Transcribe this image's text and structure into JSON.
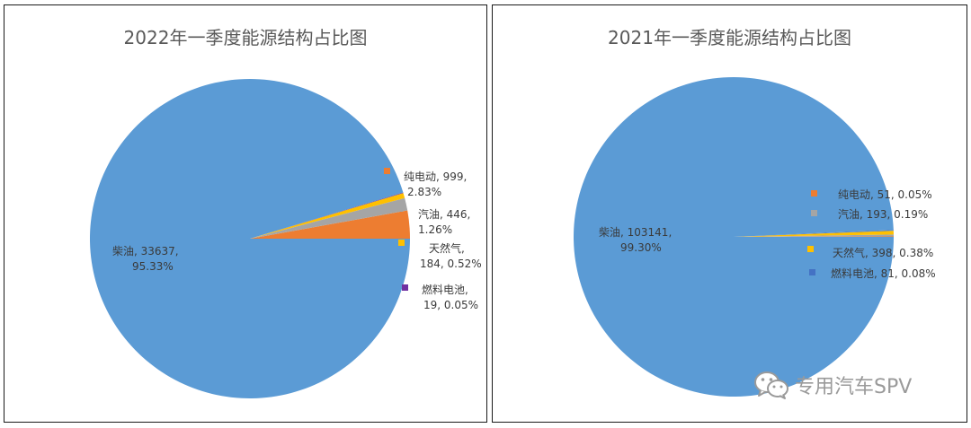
{
  "chart_data": [
    {
      "type": "pie",
      "title": "2022年一季度能源结构占比图",
      "slices": [
        {
          "name": "纯电动",
          "value": 999,
          "pct_text": "2.83%",
          "color": "#ED7D31"
        },
        {
          "name": "汽油",
          "value": 446,
          "pct_text": "1.26%",
          "color": "#A5A5A5"
        },
        {
          "name": "天然气",
          "value": 184,
          "pct_text": "0.52%",
          "color": "#FFC000"
        },
        {
          "name": "燃料电池",
          "value": 19,
          "pct_text": "0.05%",
          "color": "#7030A0"
        },
        {
          "name": "柴油",
          "value": 33637,
          "pct_text": "95.33%",
          "color": "#5B9BD5"
        }
      ],
      "labels": {
        "纯电动": [
          "纯电动, 999,",
          "2.83%"
        ],
        "汽油": [
          "汽油, 446,",
          "1.26%"
        ],
        "天然气": [
          "天然气,",
          "184, 0.52%"
        ],
        "燃料电池": [
          "燃料电池,",
          "19, 0.05%"
        ],
        "柴油": [
          "柴油, 33637,",
          "95.33%"
        ]
      }
    },
    {
      "type": "pie",
      "title": "2021年一季度能源结构占比图",
      "slices": [
        {
          "name": "纯电动",
          "value": 51,
          "pct_text": "0.05%",
          "color": "#ED7D31"
        },
        {
          "name": "汽油",
          "value": 193,
          "pct_text": "0.19%",
          "color": "#A5A5A5"
        },
        {
          "name": "天然气",
          "value": 398,
          "pct_text": "0.38%",
          "color": "#FFC000"
        },
        {
          "name": "燃料电池",
          "value": 81,
          "pct_text": "0.08%",
          "color": "#4472C4"
        },
        {
          "name": "柴油",
          "value": 103141,
          "pct_text": "99.30%",
          "color": "#5B9BD5"
        }
      ],
      "labels": {
        "纯电动": "纯电动, 51, 0.05%",
        "汽油": "汽油, 193, 0.19%",
        "天然气": "天然气, 398, 0.38%",
        "燃料电池": "燃料电池, 81, 0.08%",
        "柴油": [
          "柴油, 103141,",
          "99.30%"
        ]
      }
    }
  ],
  "watermark": {
    "text": "专用汽车SPV",
    "icon": "wechat-icon"
  }
}
